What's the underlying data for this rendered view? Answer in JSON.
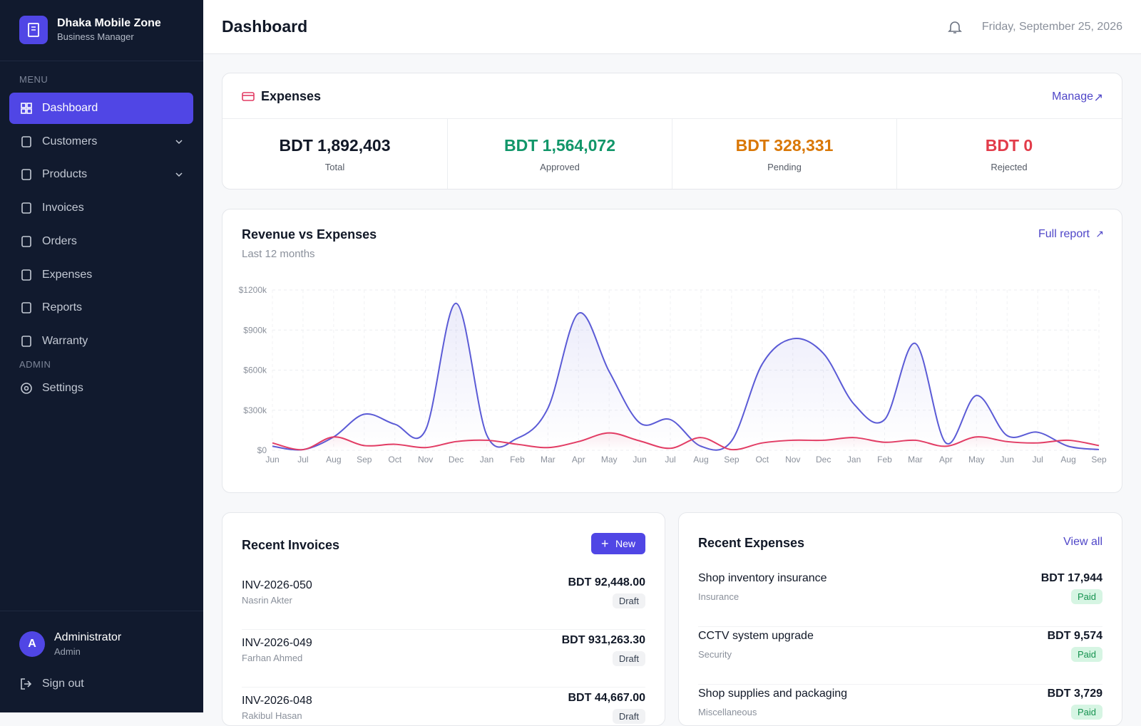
{
  "sidebar": {
    "brand": {
      "name": "Dhaka Mobile Zone",
      "subtitle": "Business Manager"
    },
    "menu_label": "MENU",
    "menu": [
      "Dashboard",
      "Customers",
      "Products",
      "Invoices",
      "Orders",
      "Expenses",
      "Reports",
      "Warranty"
    ],
    "admin_label": "ADMIN",
    "admin": [
      "Settings"
    ],
    "user": {
      "initial": "A",
      "name": "Administrator",
      "role": "Admin"
    },
    "sign_out": "Sign out"
  },
  "header": {
    "title": "Dashboard",
    "date": "Friday, September 25, 2026"
  },
  "expenses": {
    "title": "Expenses",
    "link": "Manage",
    "stats": [
      {
        "value": "BDT 1,892,403",
        "label": "Total"
      },
      {
        "value": "BDT 1,564,072",
        "label": "Approved"
      },
      {
        "value": "BDT 328,331",
        "label": "Pending"
      },
      {
        "value": "BDT 0",
        "label": "Rejected"
      }
    ]
  },
  "chart_data": {
    "type": "line",
    "title": "Revenue vs Expenses",
    "subtitle": "Last 12 months",
    "link": "Full report",
    "categories": [
      "Jun",
      "Jul",
      "Aug",
      "Sep",
      "Oct",
      "Nov",
      "Dec",
      "Jan",
      "Feb",
      "Mar",
      "Apr",
      "May",
      "Jun",
      "Jul",
      "Aug",
      "Sep",
      "Oct",
      "Nov",
      "Dec",
      "Jan",
      "Feb",
      "Mar",
      "Apr",
      "May",
      "Jun",
      "Jul",
      "Aug",
      "Sep"
    ],
    "series": [
      {
        "color": "#5b5bd6",
        "values": [
          30000,
          5000,
          100000,
          270000,
          195000,
          150000,
          1100000,
          115000,
          90000,
          315000,
          1025000,
          590000,
          205000,
          230000,
          30000,
          70000,
          645000,
          835000,
          725000,
          345000,
          230000,
          800000,
          55000,
          410000,
          110000,
          135000,
          30000,
          5000
        ]
      },
      {
        "color": "#e23c64",
        "values": [
          55000,
          5000,
          100000,
          35000,
          45000,
          20000,
          65000,
          75000,
          45000,
          20000,
          65000,
          130000,
          70000,
          15000,
          95000,
          5000,
          55000,
          75000,
          75000,
          95000,
          60000,
          75000,
          30000,
          100000,
          65000,
          55000,
          75000,
          35000
        ]
      }
    ],
    "ylim": [
      0,
      1200000
    ],
    "yticks": [
      {
        "value": 0,
        "label": "$0"
      },
      {
        "value": 300000,
        "label": "$300k"
      },
      {
        "value": 600000,
        "label": "$600k"
      },
      {
        "value": 900000,
        "label": "$900k"
      },
      {
        "value": 1200000,
        "label": "$1200k"
      }
    ],
    "grid": true,
    "area": true
  },
  "invoices": {
    "title": "Recent Invoices",
    "button": "New",
    "rows": [
      {
        "id": "INV-2026-050",
        "customer": "Nasrin Akter",
        "amount": "BDT 92,448.00",
        "status": "Draft"
      },
      {
        "id": "INV-2026-049",
        "customer": "Farhan Ahmed",
        "amount": "BDT 931,263.30",
        "status": "Draft"
      },
      {
        "id": "INV-2026-048",
        "customer": "Rakibul Hasan",
        "amount": "BDT 44,667.00",
        "status": "Draft"
      }
    ]
  },
  "recent_expenses": {
    "title": "Recent Expenses",
    "link": "View all",
    "rows": [
      {
        "name": "Shop inventory insurance",
        "category": "Insurance",
        "amount": "BDT 17,944",
        "status": "Paid"
      },
      {
        "name": "CCTV system upgrade",
        "category": "Security",
        "amount": "BDT 9,574",
        "status": "Paid"
      },
      {
        "name": "Shop supplies and packaging",
        "category": "Miscellaneous",
        "amount": "BDT 3,729",
        "status": "Paid"
      }
    ]
  }
}
